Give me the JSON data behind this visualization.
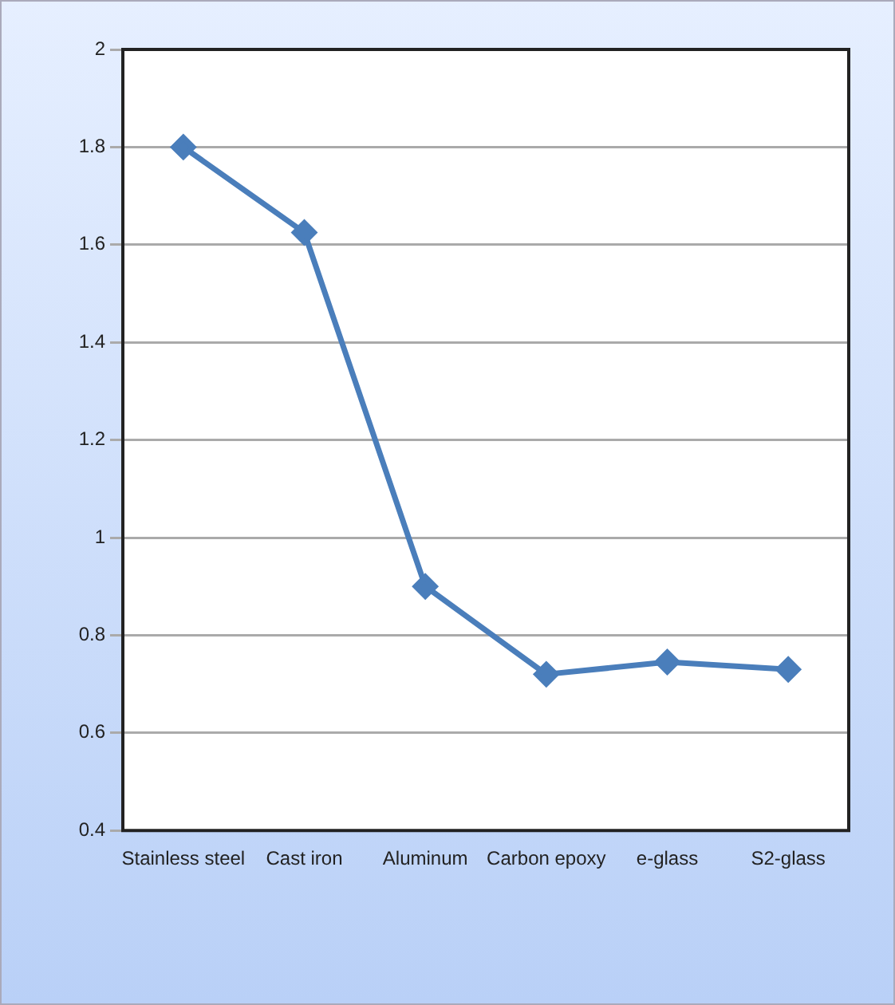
{
  "chart_data": {
    "type": "line",
    "categories": [
      "Stainless steel",
      "Cast iron",
      "Aluminum",
      "Carbon epoxy",
      "e-glass",
      "S2-glass"
    ],
    "series": [
      {
        "color": "#4a7ebb",
        "values": [
          1.8,
          1.625,
          0.9,
          0.72,
          0.745,
          0.73
        ]
      }
    ],
    "ylim": [
      0.4,
      2
    ],
    "yticks": [
      0.4,
      0.6,
      0.8,
      1,
      1.2,
      1.4,
      1.6,
      1.8,
      2
    ],
    "grid": "y",
    "legend": false,
    "marker": "diamond",
    "line_style": "solid"
  }
}
